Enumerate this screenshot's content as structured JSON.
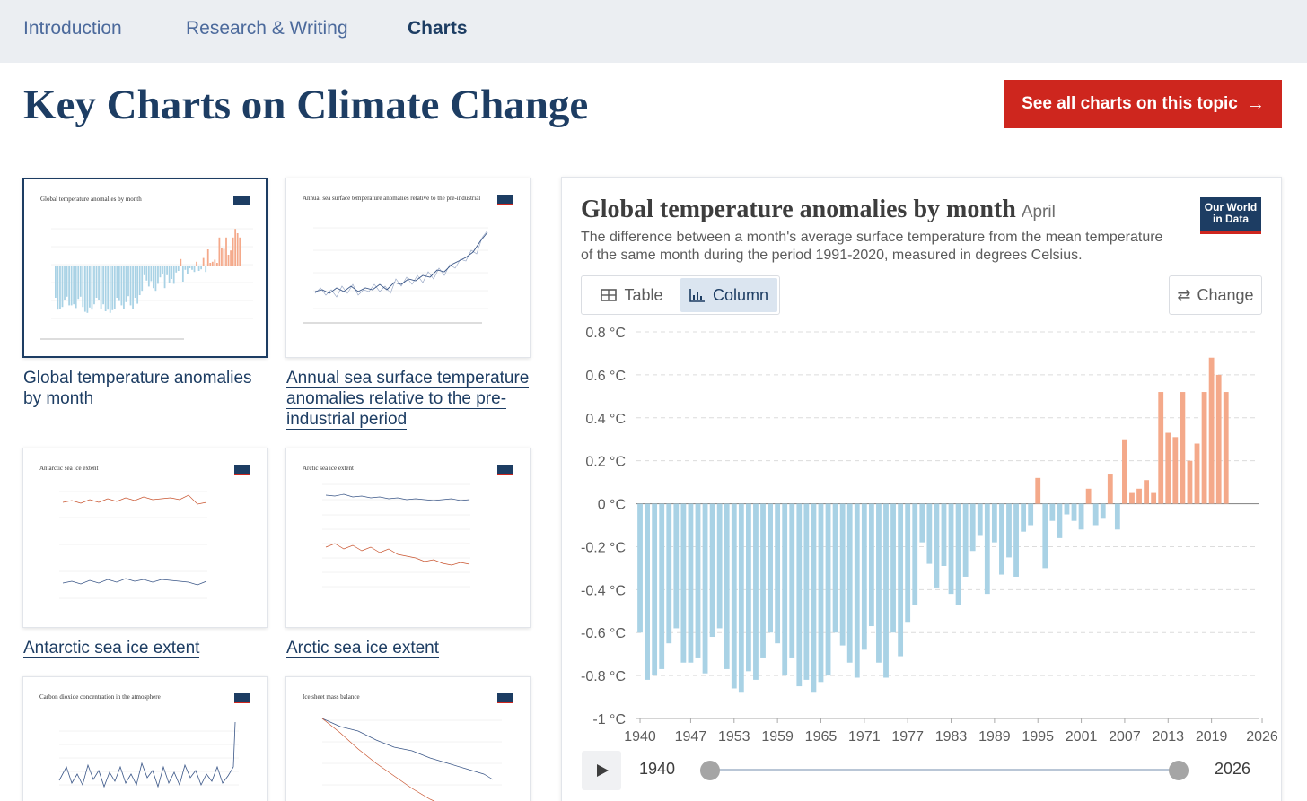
{
  "nav": {
    "tabs": [
      {
        "label": "Introduction"
      },
      {
        "label": "Research & Writing"
      },
      {
        "label": "Charts"
      }
    ]
  },
  "page": {
    "title": "Key Charts on Climate Change",
    "see_all_label": "See all charts on this topic"
  },
  "cards": [
    {
      "caption": "Global temperature anomalies by month",
      "thumb_title": "Global temperature anomalies by month"
    },
    {
      "caption": "Annual sea surface temperature anomalies relative to the pre-industrial period",
      "thumb_title": "Annual sea surface temperature anomalies relative to the pre-industrial"
    },
    {
      "caption": "Antarctic sea ice extent",
      "thumb_title": "Antarctic sea ice extent"
    },
    {
      "caption": "Arctic sea ice extent",
      "thumb_title": "Arctic sea ice extent"
    },
    {
      "caption": "",
      "thumb_title": "Carbon dioxide concentration in the atmosphere"
    },
    {
      "caption": "",
      "thumb_title": "Ice sheet mass balance"
    }
  ],
  "chart_panel": {
    "title": "Global temperature anomalies by month",
    "month": "April",
    "subtitle": "The difference between a month's average surface temperature from the mean temperature of the same month during the period 1991-2020, measured in degrees Celsius.",
    "logo_line1": "Our World",
    "logo_line2": "in Data",
    "tab_table": "Table",
    "tab_column": "Column",
    "change_label": "Change",
    "timeline_start": "1940",
    "timeline_end": "2026"
  },
  "chart_data": {
    "type": "bar",
    "ylim": [
      -1,
      0.8
    ],
    "y_ticks": [
      0.8,
      0.6,
      0.4,
      0.2,
      0,
      -0.2,
      -0.4,
      -0.6,
      -0.8,
      -1
    ],
    "y_tick_labels": [
      "0.8 °C",
      "0.6 °C",
      "0.4 °C",
      "0.2 °C",
      "0 °C",
      "-0.2 °C",
      "-0.4 °C",
      "-0.6 °C",
      "-0.8 °C",
      "-1 °C"
    ],
    "x_tick_labels": [
      "1940",
      "1947",
      "1953",
      "1959",
      "1965",
      "1971",
      "1977",
      "1983",
      "1989",
      "1995",
      "2001",
      "2007",
      "2013",
      "2019",
      "2026"
    ],
    "x_ticks": [
      1940,
      1947,
      1953,
      1959,
      1965,
      1971,
      1977,
      1983,
      1989,
      1995,
      2001,
      2007,
      2013,
      2019,
      2026
    ],
    "x": [
      1940,
      1941,
      1942,
      1943,
      1944,
      1945,
      1946,
      1947,
      1948,
      1949,
      1950,
      1951,
      1952,
      1953,
      1954,
      1955,
      1956,
      1957,
      1958,
      1959,
      1960,
      1961,
      1962,
      1963,
      1964,
      1965,
      1966,
      1967,
      1968,
      1969,
      1970,
      1971,
      1972,
      1973,
      1974,
      1975,
      1976,
      1977,
      1978,
      1979,
      1980,
      1981,
      1982,
      1983,
      1984,
      1985,
      1986,
      1987,
      1988,
      1989,
      1990,
      1991,
      1992,
      1993,
      1994,
      1995,
      1996,
      1997,
      1998,
      1999,
      2000,
      2001,
      2002,
      2003,
      2004,
      2005,
      2006,
      2007,
      2008,
      2009,
      2010,
      2011,
      2012,
      2013,
      2014,
      2015,
      2016,
      2017,
      2018,
      2019,
      2020,
      2021,
      2022,
      2023,
      2024,
      2025
    ],
    "values": [
      -0.6,
      -0.82,
      -0.8,
      -0.77,
      -0.65,
      -0.58,
      -0.74,
      -0.74,
      -0.72,
      -0.79,
      -0.62,
      -0.58,
      -0.77,
      -0.86,
      -0.88,
      -0.78,
      -0.82,
      -0.72,
      -0.6,
      -0.65,
      -0.8,
      -0.72,
      -0.85,
      -0.82,
      -0.88,
      -0.83,
      -0.8,
      -0.6,
      -0.66,
      -0.74,
      -0.81,
      -0.68,
      -0.57,
      -0.74,
      -0.81,
      -0.6,
      -0.71,
      -0.55,
      -0.47,
      -0.18,
      -0.28,
      -0.39,
      -0.29,
      -0.42,
      -0.47,
      -0.34,
      -0.22,
      -0.15,
      -0.42,
      -0.18,
      -0.33,
      -0.25,
      -0.34,
      -0.13,
      -0.1,
      0.12,
      -0.3,
      -0.08,
      -0.16,
      -0.05,
      -0.08,
      -0.12,
      0.07,
      -0.1,
      -0.07,
      0.14,
      -0.12,
      0.3,
      0.05,
      0.07,
      0.11,
      0.05,
      0.52,
      0.33,
      0.31,
      0.52,
      0.2,
      0.28,
      0.52,
      0.68,
      0.6,
      0.52,
      0.0,
      0.0,
      0.0,
      0.0
    ]
  }
}
